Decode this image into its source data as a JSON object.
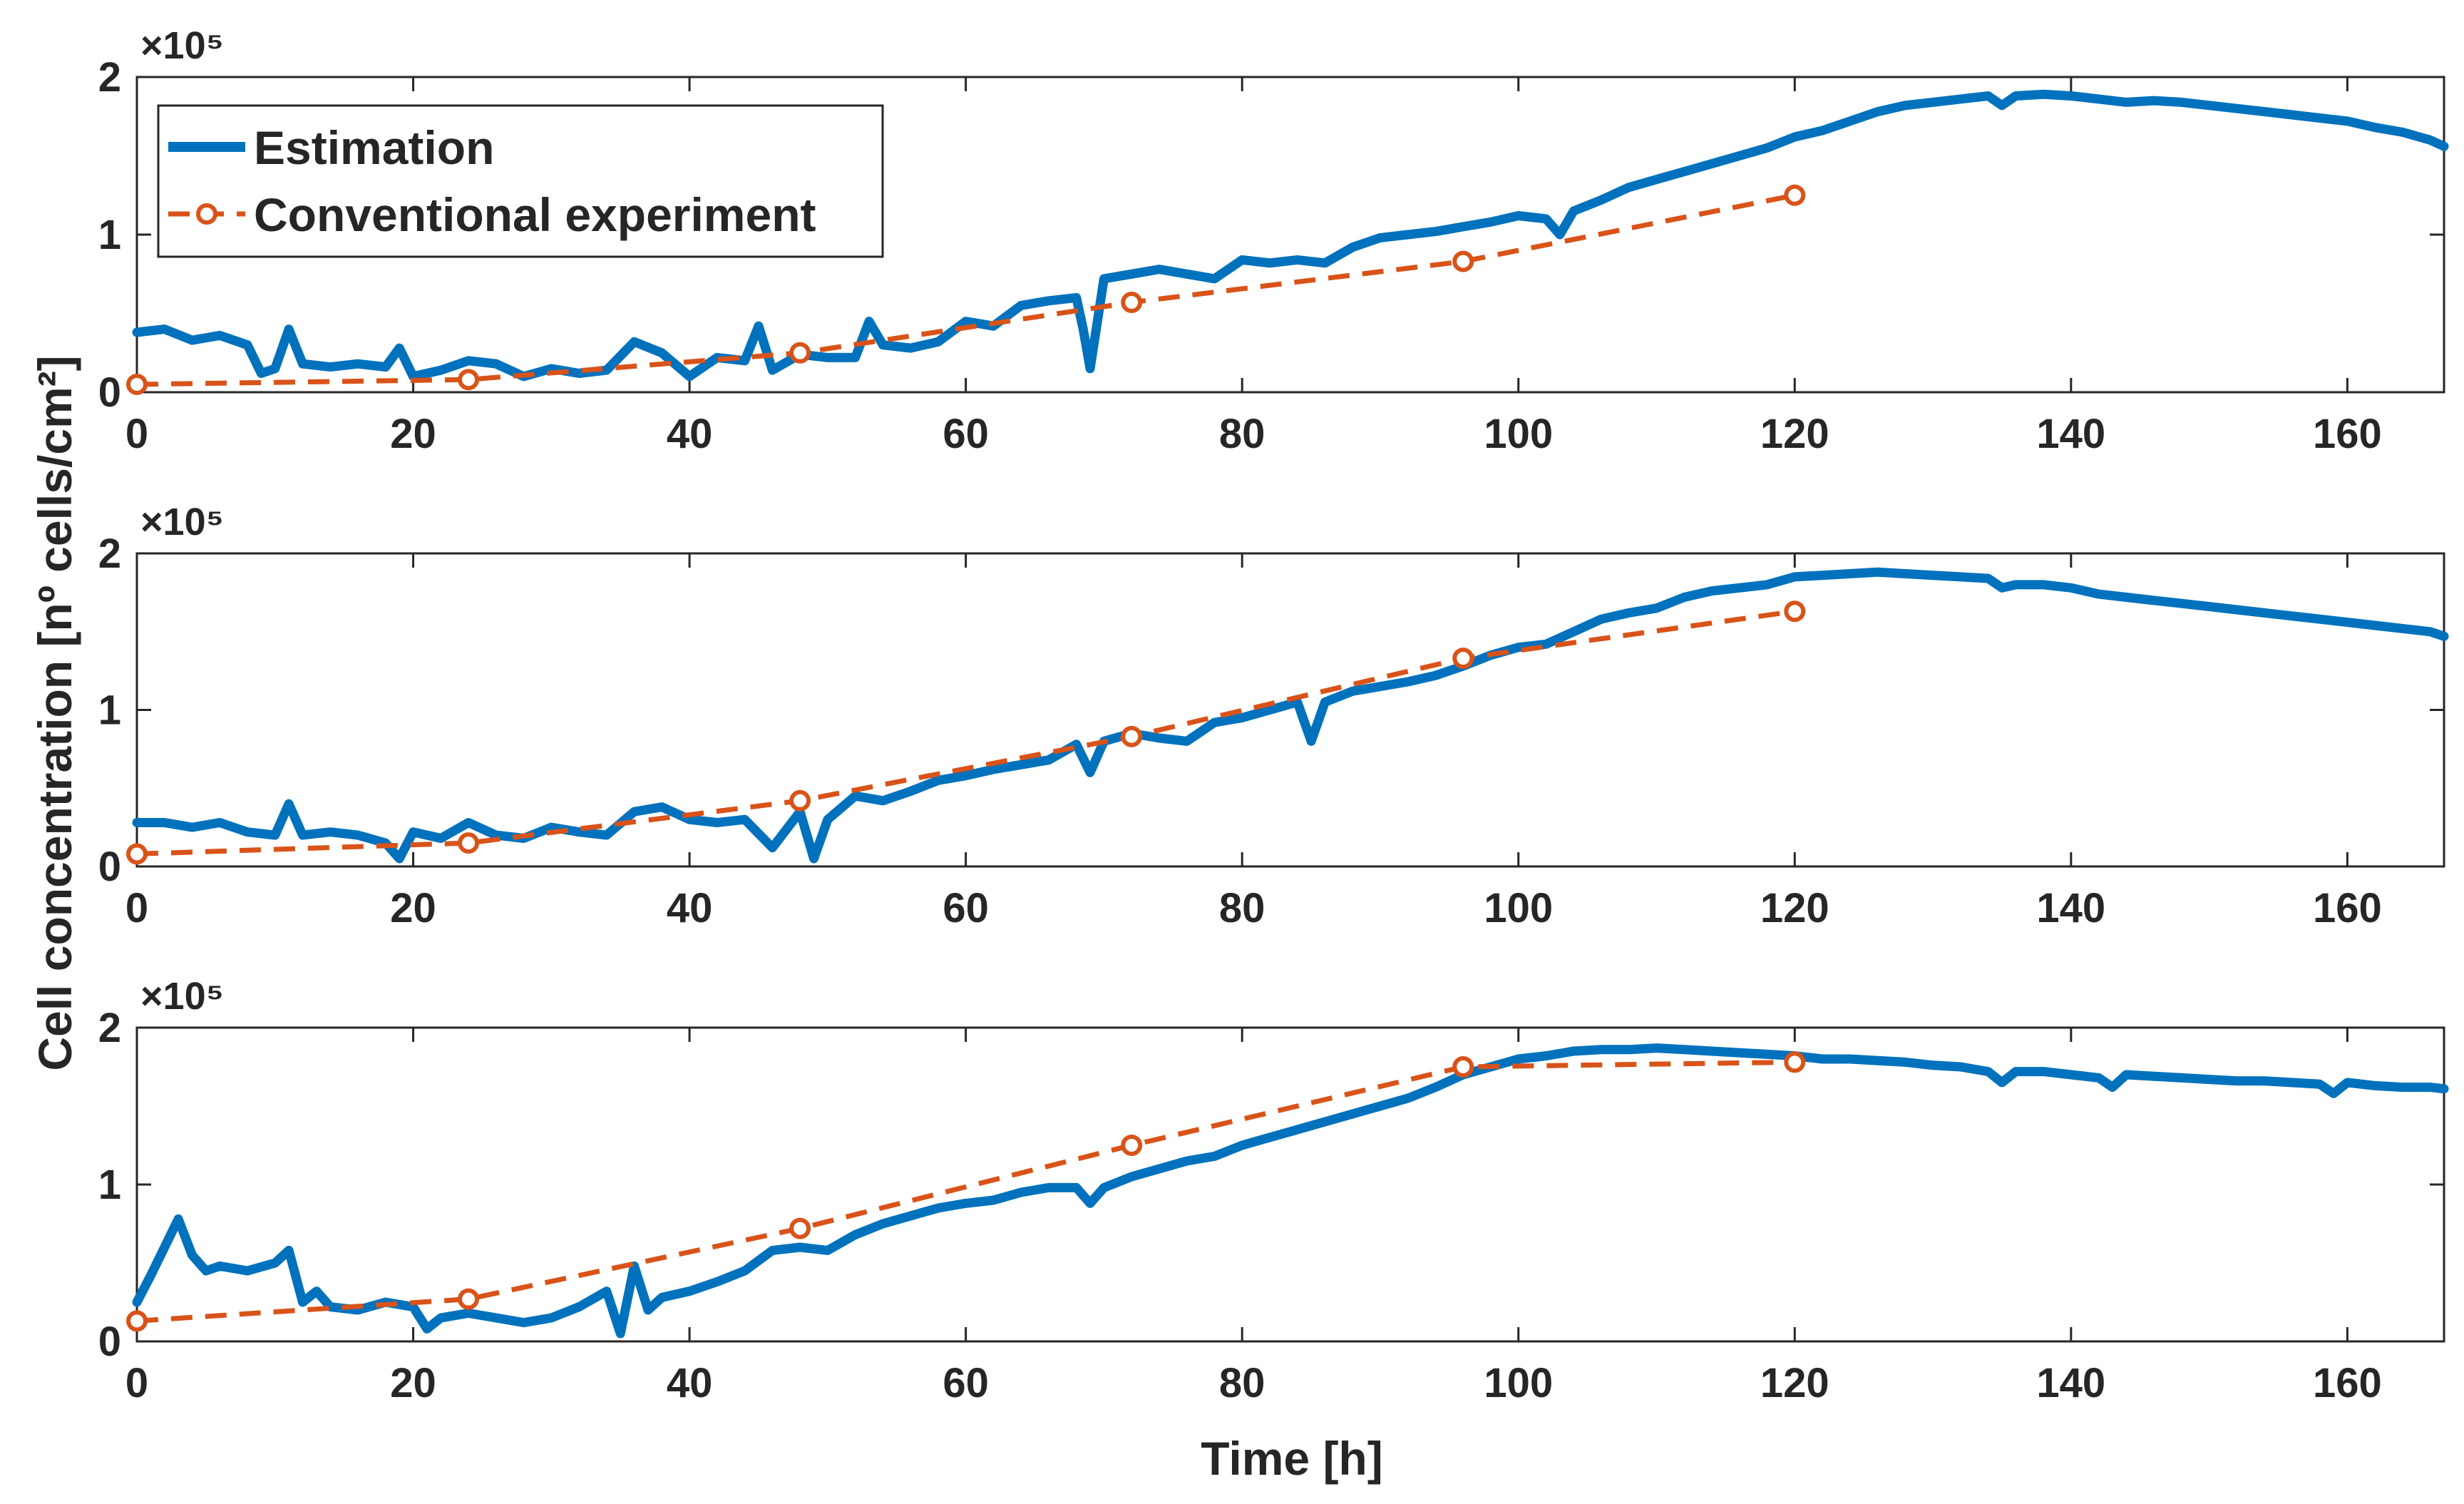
{
  "chart_data": {
    "type": "line",
    "figure": {
      "ylabel": "Cell concentration [nº cells/cm²]",
      "xlabel": "Time [h]",
      "legend": {
        "placement": "top-left of first panel",
        "entries": [
          {
            "label": "Estimation",
            "series": "estimation"
          },
          {
            "label": "Conventional experiment",
            "series": "experiment"
          }
        ]
      },
      "colors": {
        "estimation": "#0072BD",
        "experiment": "#D95319",
        "axis": "#262626"
      }
    },
    "panels": [
      {
        "xlim": [
          0,
          167
        ],
        "ylim": [
          0,
          2
        ],
        "y_exponent_label": "×10⁵",
        "xticks": [
          "0",
          "20",
          "40",
          "60",
          "80",
          "100",
          "120",
          "140",
          "160"
        ],
        "yticks": [
          "0",
          "1",
          "2"
        ],
        "series": [
          {
            "name": "Estimation",
            "x": [
              0,
              2,
              4,
              6,
              8,
              9,
              10,
              11,
              12,
              14,
              16,
              18,
              19,
              20,
              22,
              24,
              26,
              28,
              30,
              32,
              34,
              36,
              38,
              40,
              42,
              44,
              45,
              46,
              48,
              50,
              52,
              53,
              54,
              56,
              58,
              60,
              62,
              64,
              66,
              68,
              68.5,
              69,
              70,
              72,
              74,
              76,
              78,
              80,
              82,
              84,
              86,
              88,
              90,
              92,
              94,
              96,
              98,
              100,
              102,
              103,
              104,
              106,
              108,
              110,
              112,
              114,
              116,
              118,
              120,
              122,
              124,
              126,
              128,
              130,
              132,
              134,
              135,
              136,
              138,
              140,
              142,
              144,
              146,
              148,
              150,
              152,
              154,
              156,
              158,
              160,
              162,
              164,
              166,
              167
            ],
            "y": [
              0.38,
              0.4,
              0.33,
              0.36,
              0.3,
              0.12,
              0.15,
              0.4,
              0.18,
              0.16,
              0.18,
              0.16,
              0.28,
              0.1,
              0.14,
              0.2,
              0.18,
              0.1,
              0.15,
              0.12,
              0.14,
              0.32,
              0.25,
              0.1,
              0.22,
              0.2,
              0.42,
              0.14,
              0.24,
              0.22,
              0.22,
              0.45,
              0.3,
              0.28,
              0.32,
              0.45,
              0.42,
              0.55,
              0.58,
              0.6,
              0.4,
              0.15,
              0.72,
              0.75,
              0.78,
              0.75,
              0.72,
              0.84,
              0.82,
              0.84,
              0.82,
              0.92,
              0.98,
              1.0,
              1.02,
              1.05,
              1.08,
              1.12,
              1.1,
              1.0,
              1.15,
              1.22,
              1.3,
              1.35,
              1.4,
              1.45,
              1.5,
              1.55,
              1.62,
              1.66,
              1.72,
              1.78,
              1.82,
              1.84,
              1.86,
              1.88,
              1.82,
              1.88,
              1.89,
              1.88,
              1.86,
              1.84,
              1.85,
              1.84,
              1.82,
              1.8,
              1.78,
              1.76,
              1.74,
              1.72,
              1.68,
              1.65,
              1.6,
              1.56
            ]
          },
          {
            "name": "Conventional experiment",
            "x": [
              0,
              24,
              48,
              72,
              96,
              120
            ],
            "y": [
              0.05,
              0.08,
              0.25,
              0.57,
              0.83,
              1.25
            ]
          }
        ]
      },
      {
        "xlim": [
          0,
          167
        ],
        "ylim": [
          0,
          2
        ],
        "y_exponent_label": "×10⁵",
        "xticks": [
          "0",
          "20",
          "40",
          "60",
          "80",
          "100",
          "120",
          "140",
          "160"
        ],
        "yticks": [
          "0",
          "1",
          "2"
        ],
        "series": [
          {
            "name": "Estimation",
            "x": [
              0,
              2,
              4,
              6,
              8,
              10,
              11,
              12,
              14,
              16,
              18,
              19,
              20,
              22,
              24,
              26,
              28,
              30,
              32,
              34,
              36,
              38,
              40,
              42,
              44,
              46,
              48,
              49,
              50,
              52,
              54,
              56,
              58,
              60,
              62,
              64,
              66,
              68,
              69,
              70,
              72,
              74,
              76,
              78,
              80,
              82,
              84,
              85,
              86,
              88,
              90,
              92,
              94,
              96,
              98,
              100,
              102,
              104,
              106,
              108,
              110,
              112,
              114,
              116,
              118,
              120,
              122,
              124,
              126,
              128,
              130,
              132,
              134,
              135,
              136,
              138,
              140,
              142,
              144,
              146,
              148,
              150,
              152,
              154,
              156,
              158,
              160,
              162,
              164,
              166,
              167
            ],
            "y": [
              0.28,
              0.28,
              0.25,
              0.28,
              0.22,
              0.2,
              0.4,
              0.2,
              0.22,
              0.2,
              0.15,
              0.05,
              0.22,
              0.18,
              0.28,
              0.2,
              0.18,
              0.25,
              0.22,
              0.2,
              0.35,
              0.38,
              0.3,
              0.28,
              0.3,
              0.12,
              0.35,
              0.05,
              0.3,
              0.45,
              0.42,
              0.48,
              0.55,
              0.58,
              0.62,
              0.65,
              0.68,
              0.78,
              0.6,
              0.8,
              0.85,
              0.82,
              0.8,
              0.92,
              0.95,
              1.0,
              1.05,
              0.8,
              1.05,
              1.12,
              1.15,
              1.18,
              1.22,
              1.28,
              1.35,
              1.4,
              1.42,
              1.5,
              1.58,
              1.62,
              1.65,
              1.72,
              1.76,
              1.78,
              1.8,
              1.85,
              1.86,
              1.87,
              1.88,
              1.87,
              1.86,
              1.85,
              1.84,
              1.78,
              1.8,
              1.8,
              1.78,
              1.74,
              1.72,
              1.7,
              1.68,
              1.66,
              1.64,
              1.62,
              1.6,
              1.58,
              1.56,
              1.54,
              1.52,
              1.5,
              1.47
            ]
          },
          {
            "name": "Conventional experiment",
            "x": [
              0,
              24,
              48,
              72,
              96,
              120
            ],
            "y": [
              0.08,
              0.15,
              0.42,
              0.83,
              1.33,
              1.63
            ]
          }
        ]
      },
      {
        "xlim": [
          0,
          167
        ],
        "ylim": [
          0,
          2
        ],
        "y_exponent_label": "×10⁵",
        "xticks": [
          "0",
          "20",
          "40",
          "60",
          "80",
          "100",
          "120",
          "140",
          "160"
        ],
        "yticks": [
          "0",
          "1",
          "2"
        ],
        "series": [
          {
            "name": "Estimation",
            "x": [
              0,
              1,
              2,
              3,
              4,
              5,
              6,
              8,
              10,
              11,
              12,
              13,
              14,
              16,
              18,
              20,
              21,
              22,
              24,
              26,
              28,
              30,
              32,
              34,
              35,
              36,
              37,
              38,
              40,
              42,
              44,
              46,
              48,
              50,
              52,
              54,
              56,
              58,
              60,
              62,
              64,
              66,
              68,
              69,
              70,
              72,
              74,
              76,
              78,
              80,
              82,
              84,
              86,
              88,
              90,
              92,
              94,
              96,
              98,
              100,
              102,
              104,
              106,
              108,
              110,
              112,
              114,
              116,
              118,
              120,
              122,
              124,
              126,
              128,
              130,
              132,
              134,
              135,
              136,
              138,
              140,
              142,
              143,
              144,
              146,
              148,
              150,
              152,
              154,
              156,
              158,
              159,
              160,
              162,
              164,
              166,
              167
            ],
            "y": [
              0.25,
              0.42,
              0.6,
              0.78,
              0.55,
              0.45,
              0.48,
              0.45,
              0.5,
              0.58,
              0.25,
              0.32,
              0.22,
              0.2,
              0.25,
              0.22,
              0.08,
              0.15,
              0.18,
              0.15,
              0.12,
              0.15,
              0.22,
              0.32,
              0.05,
              0.48,
              0.2,
              0.28,
              0.32,
              0.38,
              0.45,
              0.58,
              0.6,
              0.58,
              0.68,
              0.75,
              0.8,
              0.85,
              0.88,
              0.9,
              0.95,
              0.98,
              0.98,
              0.88,
              0.98,
              1.05,
              1.1,
              1.15,
              1.18,
              1.25,
              1.3,
              1.35,
              1.4,
              1.45,
              1.5,
              1.55,
              1.62,
              1.7,
              1.75,
              1.8,
              1.82,
              1.85,
              1.86,
              1.86,
              1.87,
              1.86,
              1.85,
              1.84,
              1.83,
              1.82,
              1.8,
              1.8,
              1.79,
              1.78,
              1.76,
              1.75,
              1.72,
              1.65,
              1.72,
              1.72,
              1.7,
              1.68,
              1.62,
              1.7,
              1.69,
              1.68,
              1.67,
              1.66,
              1.66,
              1.65,
              1.64,
              1.58,
              1.65,
              1.63,
              1.62,
              1.62,
              1.61
            ]
          },
          {
            "name": "Conventional experiment",
            "x": [
              0,
              24,
              48,
              72,
              96,
              120
            ],
            "y": [
              0.13,
              0.27,
              0.72,
              1.25,
              1.75,
              1.78
            ]
          }
        ]
      }
    ]
  }
}
